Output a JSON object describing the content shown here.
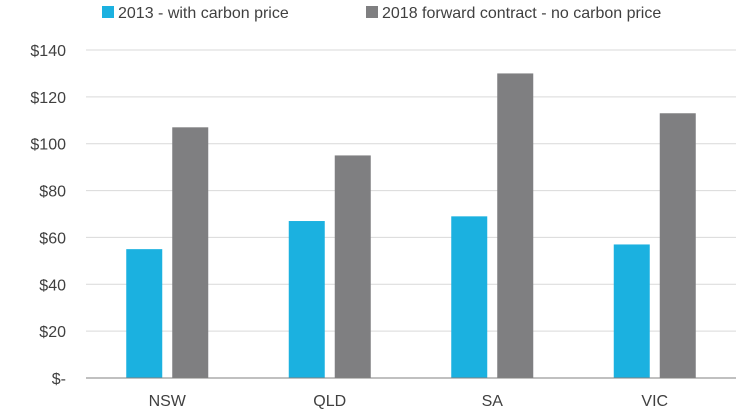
{
  "chart_data": {
    "type": "bar",
    "categories": [
      "NSW",
      "QLD",
      "SA",
      "VIC"
    ],
    "series": [
      {
        "name": "2013 - with carbon price",
        "values": [
          55,
          67,
          69,
          57
        ],
        "color": "#1bb1e0"
      },
      {
        "name": "2018 forward contract - no carbon price",
        "values": [
          107,
          95,
          130,
          113
        ],
        "color": "#7f7f81"
      }
    ],
    "ylim": [
      0,
      140
    ],
    "yticks": [
      0,
      20,
      40,
      60,
      80,
      100,
      120,
      140
    ],
    "ytick_labels": [
      "$-",
      "$20",
      "$40",
      "$60",
      "$80",
      "$100",
      "$120",
      "$140"
    ],
    "grid": true,
    "legend_position": "top",
    "title": "",
    "xlabel": "",
    "ylabel": ""
  }
}
